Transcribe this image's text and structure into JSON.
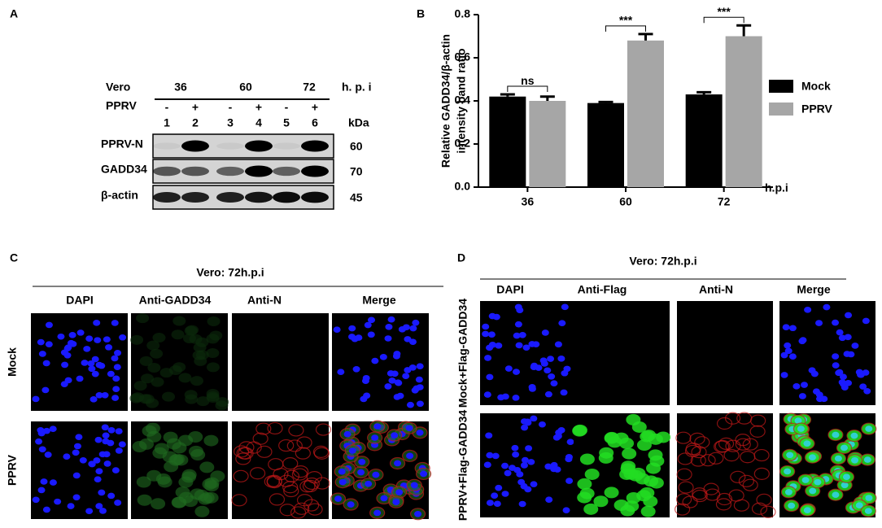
{
  "panel_a": {
    "letter": "A",
    "row_header": "Vero",
    "time_points": [
      "36",
      "60",
      "72"
    ],
    "time_unit": "h. p. i",
    "treatment_label": "PPRV",
    "treatments": [
      "-",
      "+",
      "-",
      "+",
      "-",
      "+"
    ],
    "lanes": [
      "1",
      "2",
      "3",
      "4",
      "5",
      "6"
    ],
    "kda_header": "kDa",
    "blots": [
      {
        "label": "PPRV-N",
        "kda": 60
      },
      {
        "label": "GADD34",
        "kda": 70
      },
      {
        "label": "β-actin",
        "kda": 45
      }
    ]
  },
  "chart_data": {
    "type": "bar",
    "panel": "B",
    "categories": [
      "36",
      "60",
      "72"
    ],
    "xlabel": "h.p.i",
    "ylabel": [
      "Relative GADD34/β-actin",
      "intensity band ratio"
    ],
    "series": [
      {
        "name": "Mock",
        "color": "#000000",
        "values": [
          0.42,
          0.39,
          0.43
        ],
        "errors": [
          0.01,
          0.005,
          0.01
        ]
      },
      {
        "name": "PPRV",
        "color": "#a6a6a6",
        "values": [
          0.4,
          0.68,
          0.7
        ],
        "errors": [
          0.02,
          0.03,
          0.05
        ]
      }
    ],
    "annotations": [
      "ns",
      "***",
      "***"
    ],
    "ylim": [
      0,
      0.8
    ],
    "yticks": [
      {
        "value": 0,
        "label": "0.0"
      },
      0.2,
      0.4,
      0.6,
      0.8
    ],
    "legend": "right"
  },
  "panel_c": {
    "letter": "C",
    "title": "Vero: 72h.p.i",
    "columns": [
      "DAPI",
      "Anti-GADD34",
      "Anti-N",
      "Merge"
    ],
    "rows": [
      "Mock",
      "PPRV"
    ]
  },
  "panel_d": {
    "letter": "D",
    "title": "Vero: 72h.p.i",
    "columns": [
      "DAPI",
      "Anti-Flag",
      "Anti-N",
      "Merge"
    ],
    "rows": [
      "Mock+Flag-GADD34",
      "PPRV+Flag-GADD34"
    ]
  }
}
